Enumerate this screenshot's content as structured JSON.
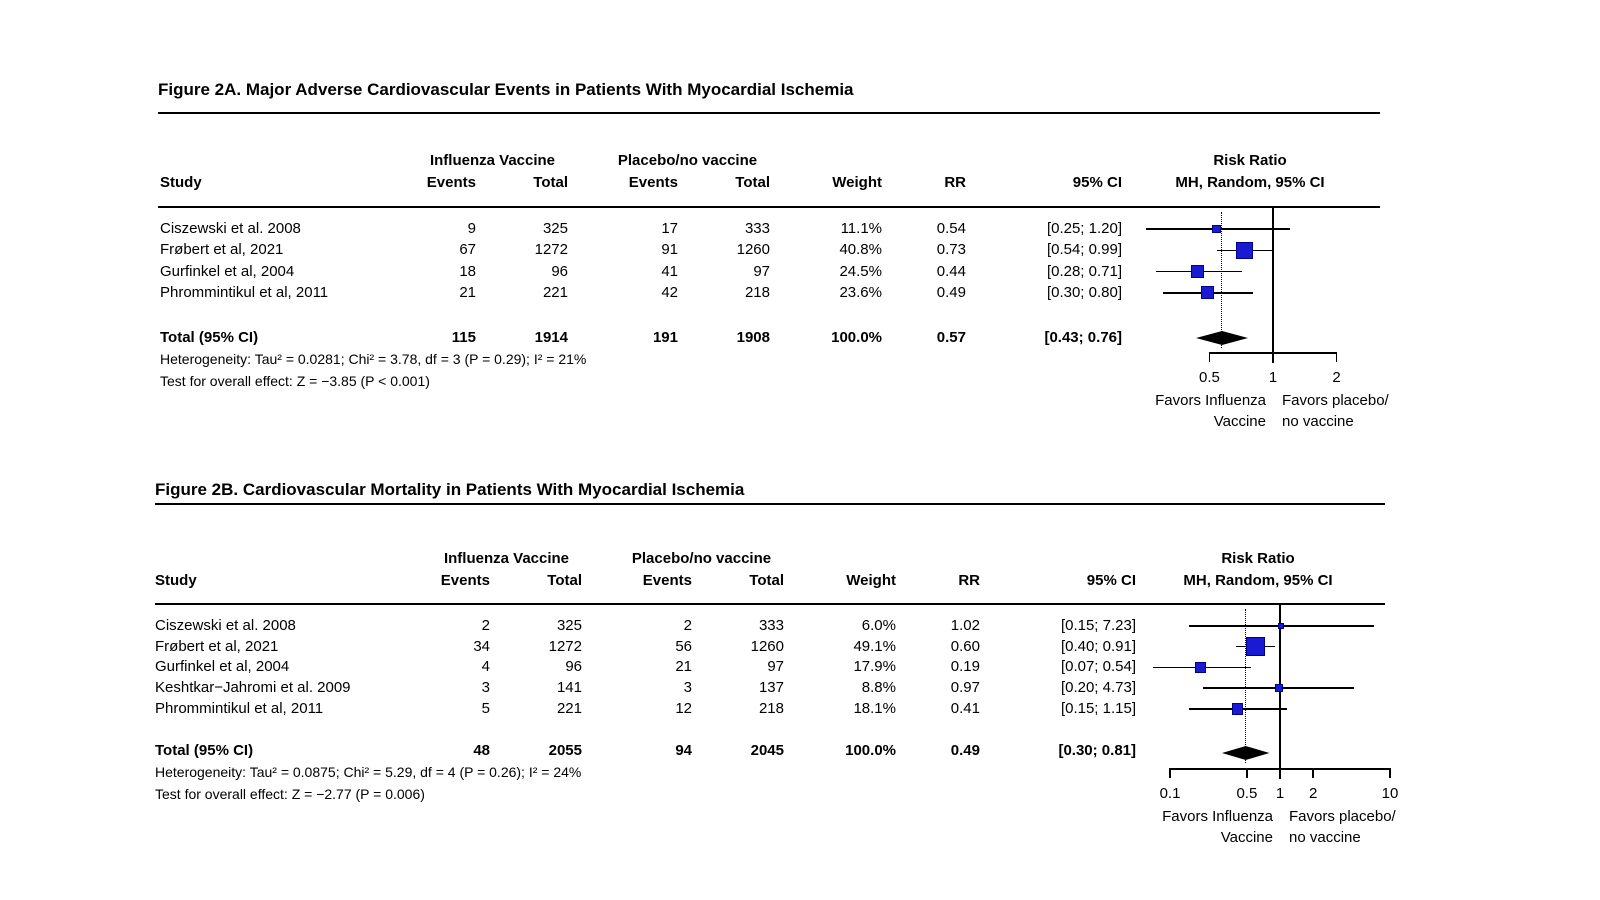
{
  "colors": {
    "background": "#ffffff",
    "text": "#000000",
    "marker_fill": "#1a1ad2",
    "marker_border": "#00008b",
    "diamond": "#000000",
    "line": "#000000"
  },
  "panels": [
    {
      "title": "Figure 2A. Major Adverse Cardiovascular Events in Patients With Myocardial Ischemia",
      "groups": [
        "Influenza Vaccine",
        "Placebo/no vaccine"
      ],
      "plot_header": [
        "Risk Ratio",
        "MH, Random, 95% CI"
      ],
      "header": {
        "study": "Study",
        "events": "Events",
        "total": "Total",
        "weight": "Weight",
        "rr": "RR",
        "ci": "95% CI"
      },
      "rows": [
        {
          "study": "Ciszewski et al. 2008",
          "e1": "9",
          "t1": "325",
          "e2": "17",
          "t2": "333",
          "weight": "11.1%",
          "rr_text": "0.54",
          "ci_text": "[0.25; 1.20]",
          "rr": 0.54,
          "lo": 0.25,
          "hi": 1.2,
          "weight_pct": 11.1
        },
        {
          "study": "Frøbert et al, 2021",
          "e1": "67",
          "t1": "1272",
          "e2": "91",
          "t2": "1260",
          "weight": "40.8%",
          "rr_text": "0.73",
          "ci_text": "[0.54; 0.99]",
          "rr": 0.73,
          "lo": 0.54,
          "hi": 0.99,
          "weight_pct": 40.8
        },
        {
          "study": "Gurfinkel et al, 2004",
          "e1": "18",
          "t1": "96",
          "e2": "41",
          "t2": "97",
          "weight": "24.5%",
          "rr_text": "0.44",
          "ci_text": "[0.28; 0.71]",
          "rr": 0.44,
          "lo": 0.28,
          "hi": 0.71,
          "weight_pct": 24.5
        },
        {
          "study": "Phrommintikul et al, 2011",
          "e1": "21",
          "t1": "221",
          "e2": "42",
          "t2": "218",
          "weight": "23.6%",
          "rr_text": "0.49",
          "ci_text": "[0.30; 0.80]",
          "rr": 0.49,
          "lo": 0.3,
          "hi": 0.8,
          "weight_pct": 23.6
        }
      ],
      "total": {
        "label": "Total (95% CI)",
        "e1": "115",
        "t1": "1914",
        "e2": "191",
        "t2": "1908",
        "weight": "100.0%",
        "rr_text": "0.57",
        "ci_text": "[0.43; 0.76]",
        "rr": 0.57,
        "lo": 0.43,
        "hi": 0.76
      },
      "heterogeneity": "Heterogeneity: Tau² = 0.0281; Chi² = 3.78, df = 3 (P = 0.29); I² = 21%",
      "overall_test": "Test for overall effect: Z = −3.85 (P < 0.001)",
      "axis": {
        "ticks": [
          0.5,
          1,
          2
        ],
        "tick_labels": [
          "0.5",
          "1",
          "2"
        ],
        "favors_left": [
          "Favors Influenza",
          "Vaccine"
        ],
        "favors_right": [
          "Favors placebo/",
          "no vaccine"
        ]
      }
    },
    {
      "title": "Figure 2B. Cardiovascular Mortality in Patients With Myocardial Ischemia",
      "groups": [
        "Influenza Vaccine",
        "Placebo/no vaccine"
      ],
      "plot_header": [
        "Risk Ratio",
        "MH, Random, 95% CI"
      ],
      "header": {
        "study": "Study",
        "events": "Events",
        "total": "Total",
        "weight": "Weight",
        "rr": "RR",
        "ci": "95% CI"
      },
      "rows": [
        {
          "study": "Ciszewski et al. 2008",
          "e1": "2",
          "t1": "325",
          "e2": "2",
          "t2": "333",
          "weight": "6.0%",
          "rr_text": "1.02",
          "ci_text": "[0.15; 7.23]",
          "rr": 1.02,
          "lo": 0.15,
          "hi": 7.23,
          "weight_pct": 6.0
        },
        {
          "study": "Frøbert et al, 2021",
          "e1": "34",
          "t1": "1272",
          "e2": "56",
          "t2": "1260",
          "weight": "49.1%",
          "rr_text": "0.60",
          "ci_text": "[0.40; 0.91]",
          "rr": 0.6,
          "lo": 0.4,
          "hi": 0.91,
          "weight_pct": 49.1
        },
        {
          "study": "Gurfinkel et al, 2004",
          "e1": "4",
          "t1": "96",
          "e2": "21",
          "t2": "97",
          "weight": "17.9%",
          "rr_text": "0.19",
          "ci_text": "[0.07; 0.54]",
          "rr": 0.19,
          "lo": 0.07,
          "hi": 0.54,
          "weight_pct": 17.9
        },
        {
          "study": "Keshtkar−Jahromi et al. 2009",
          "e1": "3",
          "t1": "141",
          "e2": "3",
          "t2": "137",
          "weight": "8.8%",
          "rr_text": "0.97",
          "ci_text": "[0.20; 4.73]",
          "rr": 0.97,
          "lo": 0.2,
          "hi": 4.73,
          "weight_pct": 8.8
        },
        {
          "study": "Phrommintikul et al, 2011",
          "e1": "5",
          "t1": "221",
          "e2": "12",
          "t2": "218",
          "weight": "18.1%",
          "rr_text": "0.41",
          "ci_text": "[0.15; 1.15]",
          "rr": 0.41,
          "lo": 0.15,
          "hi": 1.15,
          "weight_pct": 18.1
        }
      ],
      "total": {
        "label": "Total (95% CI)",
        "e1": "48",
        "t1": "2055",
        "e2": "94",
        "t2": "2045",
        "weight": "100.0%",
        "rr_text": "0.49",
        "ci_text": "[0.30; 0.81]",
        "rr": 0.49,
        "lo": 0.3,
        "hi": 0.81
      },
      "heterogeneity": "Heterogeneity: Tau² = 0.0875; Chi² = 5.29, df = 4 (P = 0.26); I² = 24%",
      "overall_test": "Test for overall effect: Z = −2.77 (P = 0.006)",
      "axis": {
        "ticks": [
          0.1,
          0.5,
          1,
          2,
          10
        ],
        "tick_labels": [
          "0.1",
          "0.5",
          "1",
          "2",
          "10"
        ],
        "favors_left": [
          "Favors Influenza",
          "Vaccine"
        ],
        "favors_right": [
          "Favors placebo/",
          "no vaccine"
        ]
      }
    }
  ],
  "chart_data": [
    {
      "type": "scatter",
      "variant": "forest_plot",
      "title": "Figure 2A. Major Adverse Cardiovascular Events in Patients With Myocardial Ischemia",
      "effect_measure": "Risk Ratio (MH, Random, 95% CI)",
      "x_scale": "log",
      "x_ticks": [
        0.5,
        1,
        2
      ],
      "reference_line": 1,
      "pooled_estimate_line": 0.57,
      "studies": [
        {
          "study": "Ciszewski et al. 2008",
          "vaccine_events": 9,
          "vaccine_total": 325,
          "control_events": 17,
          "control_total": 333,
          "weight_pct": 11.1,
          "rr": 0.54,
          "ci95": [
            0.25,
            1.2
          ]
        },
        {
          "study": "Frøbert et al, 2021",
          "vaccine_events": 67,
          "vaccine_total": 1272,
          "control_events": 91,
          "control_total": 1260,
          "weight_pct": 40.8,
          "rr": 0.73,
          "ci95": [
            0.54,
            0.99
          ]
        },
        {
          "study": "Gurfinkel et al, 2004",
          "vaccine_events": 18,
          "vaccine_total": 96,
          "control_events": 41,
          "control_total": 97,
          "weight_pct": 24.5,
          "rr": 0.44,
          "ci95": [
            0.28,
            0.71
          ]
        },
        {
          "study": "Phrommintikul et al, 2011",
          "vaccine_events": 21,
          "vaccine_total": 221,
          "control_events": 42,
          "control_total": 218,
          "weight_pct": 23.6,
          "rr": 0.49,
          "ci95": [
            0.3,
            0.8
          ]
        }
      ],
      "pooled": {
        "label": "Total (95% CI)",
        "vaccine_events": 115,
        "vaccine_total": 1914,
        "control_events": 191,
        "control_total": 1908,
        "weight_pct": 100.0,
        "rr": 0.57,
        "ci95": [
          0.43,
          0.76
        ]
      },
      "heterogeneity": {
        "tau2": 0.0281,
        "chi2": 3.78,
        "df": 3,
        "p": 0.29,
        "i2_pct": 21
      },
      "overall_effect": {
        "z": -3.85,
        "p": "< 0.001"
      },
      "favors_left": "Favors Influenza Vaccine",
      "favors_right": "Favors placebo/ no vaccine"
    },
    {
      "type": "scatter",
      "variant": "forest_plot",
      "title": "Figure 2B. Cardiovascular Mortality in Patients With Myocardial Ischemia",
      "effect_measure": "Risk Ratio (MH, Random, 95% CI)",
      "x_scale": "log",
      "x_ticks": [
        0.1,
        0.5,
        1,
        2,
        10
      ],
      "reference_line": 1,
      "pooled_estimate_line": 0.49,
      "studies": [
        {
          "study": "Ciszewski et al. 2008",
          "vaccine_events": 2,
          "vaccine_total": 325,
          "control_events": 2,
          "control_total": 333,
          "weight_pct": 6.0,
          "rr": 1.02,
          "ci95": [
            0.15,
            7.23
          ]
        },
        {
          "study": "Frøbert et al, 2021",
          "vaccine_events": 34,
          "vaccine_total": 1272,
          "control_events": 56,
          "control_total": 1260,
          "weight_pct": 49.1,
          "rr": 0.6,
          "ci95": [
            0.4,
            0.91
          ]
        },
        {
          "study": "Gurfinkel et al, 2004",
          "vaccine_events": 4,
          "vaccine_total": 96,
          "control_events": 21,
          "control_total": 97,
          "weight_pct": 17.9,
          "rr": 0.19,
          "ci95": [
            0.07,
            0.54
          ]
        },
        {
          "study": "Keshtkar−Jahromi et al. 2009",
          "vaccine_events": 3,
          "vaccine_total": 141,
          "control_events": 3,
          "control_total": 137,
          "weight_pct": 8.8,
          "rr": 0.97,
          "ci95": [
            0.2,
            4.73
          ]
        },
        {
          "study": "Phrommintikul et al, 2011",
          "vaccine_events": 5,
          "vaccine_total": 221,
          "control_events": 12,
          "control_total": 218,
          "weight_pct": 18.1,
          "rr": 0.41,
          "ci95": [
            0.15,
            1.15
          ]
        }
      ],
      "pooled": {
        "label": "Total (95% CI)",
        "vaccine_events": 48,
        "vaccine_total": 2055,
        "control_events": 94,
        "control_total": 2045,
        "weight_pct": 100.0,
        "rr": 0.49,
        "ci95": [
          0.3,
          0.81
        ]
      },
      "heterogeneity": {
        "tau2": 0.0875,
        "chi2": 5.29,
        "df": 4,
        "p": 0.26,
        "i2_pct": 24
      },
      "overall_effect": {
        "z": -2.77,
        "p": "= 0.006"
      },
      "favors_left": "Favors Influenza Vaccine",
      "favors_right": "Favors placebo/ no vaccine"
    }
  ]
}
